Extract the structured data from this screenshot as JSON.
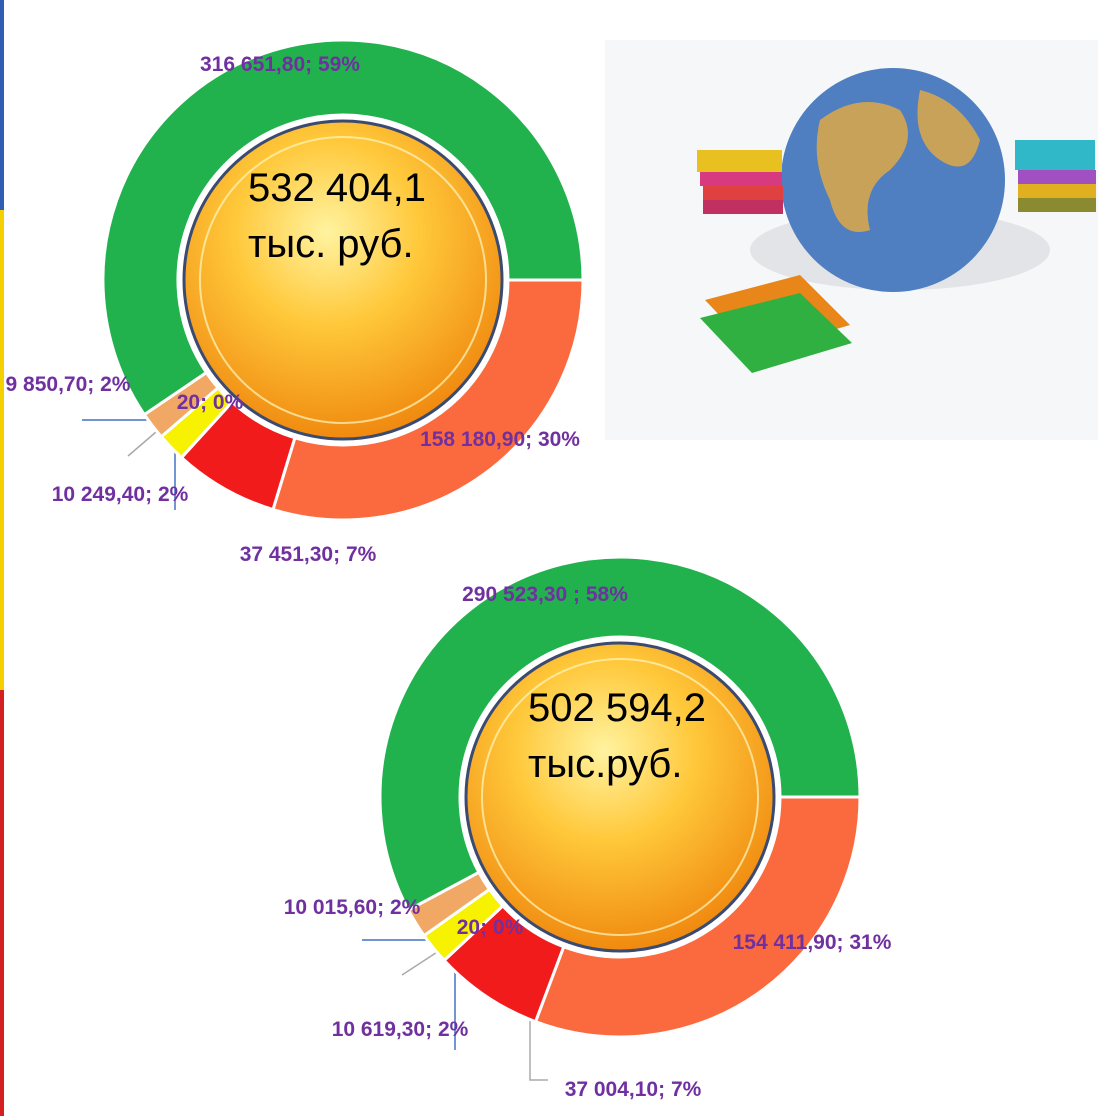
{
  "chart_data": [
    {
      "type": "donut",
      "center_text": "532 404,1 тыс. руб.",
      "values": [
        158180.9,
        37451.3,
        20,
        10249.4,
        9850.7,
        316651.8
      ],
      "value_labels": [
        "158 180,90; 30%",
        "37 451,30; 7%",
        "20; 0%",
        "10 249,40; 2%",
        "9 850,70; 2%",
        "316 651,80; 59%"
      ],
      "colors": [
        "#fb6a3e",
        "#f21b1b",
        "#b8b8b8",
        "#f6f200",
        "#f2a865",
        "#21b24e"
      ]
    },
    {
      "type": "donut",
      "center_text": "502 594,2 тыс.руб.",
      "values": [
        154411.9,
        37004.1,
        20,
        10619.3,
        10015.6,
        290523.3
      ],
      "value_labels": [
        "154 411,90; 31%",
        "37 004,10; 7%",
        "20; 0%",
        "10 619,30; 2%",
        "10 015,60; 2%",
        "290 523,30 ; 58%"
      ],
      "colors": [
        "#fb6a3e",
        "#f21b1b",
        "#b8b8b8",
        "#f6f200",
        "#f2a865",
        "#21b24e"
      ]
    }
  ]
}
